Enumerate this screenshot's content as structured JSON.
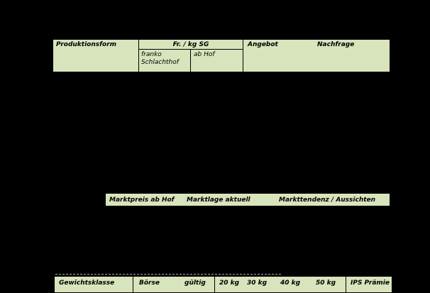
{
  "canvas": {
    "background_color": "#000000",
    "table_fill_color": "#d8e4bc",
    "border_color": "#000000"
  },
  "top_table": {
    "col_produktionsform": "Produktionsform",
    "col_price_group": "Fr. / kg SG",
    "sub_franko_schlachthof": "franko Schlachthof",
    "sub_ab_hof": "ab Hof",
    "col_angebot": "Angebot",
    "col_nachfrage": "Nachfrage"
  },
  "middle_bar": {
    "marktpreis_label": "Marktpreis ab Hof",
    "marktlage_label": "Marktlage aktuell",
    "markttendenz_label": "Markttendenz / Aussichten"
  },
  "bottom_table": {
    "col_gewichtsklasse": "Gewichtsklasse",
    "col_boerse": "Börse",
    "col_gueltig": "gültig",
    "weight_columns": [
      "20 kg",
      "30 kg",
      "40 kg",
      "50 kg"
    ],
    "col_ips_praemie": "IPS Prämie"
  }
}
